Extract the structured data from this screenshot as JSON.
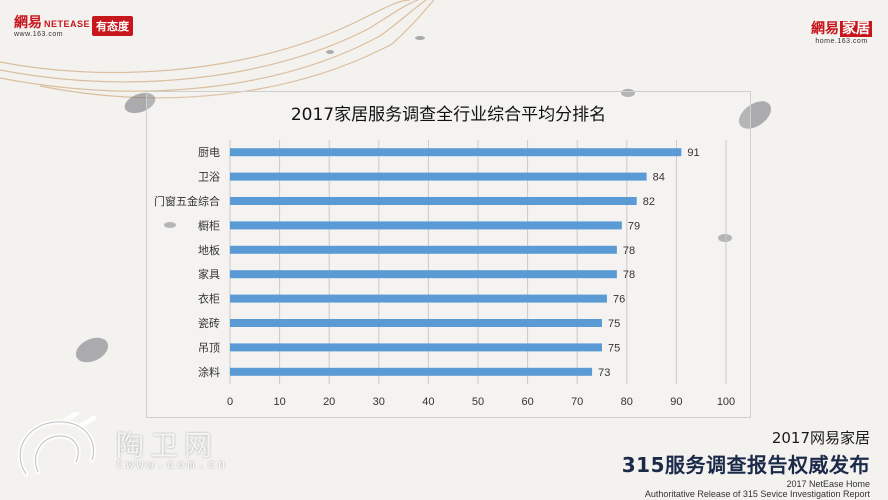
{
  "header": {
    "left_brand_cn": "網易",
    "left_brand_en": "NETEASE",
    "left_url": "www.163.com",
    "left_badge": "有态度",
    "right_brand_cn": "網易",
    "right_brand_boxed": "家居",
    "right_url": "home.163.com"
  },
  "chart_data": {
    "type": "bar",
    "orientation": "horizontal",
    "title": "2017家居服务调查全行业综合平均分排名",
    "categories": [
      "厨电",
      "卫浴",
      "门窗五金综合",
      "橱柜",
      "地板",
      "家具",
      "衣柜",
      "瓷砖",
      "吊顶",
      "涂料"
    ],
    "values": [
      91,
      84,
      82,
      79,
      78,
      78,
      76,
      75,
      75,
      73
    ],
    "xlim": [
      0,
      100
    ],
    "xticks": [
      0,
      10,
      20,
      30,
      40,
      50,
      60,
      70,
      80,
      90,
      100
    ],
    "grid": "vertical",
    "legend": "none",
    "bar_color": "#5b9bd5",
    "grid_color": "#c9c9c9",
    "text_color": "#333333"
  },
  "watermark": {
    "cn": "陶卫网",
    "url": "twww.com.cn"
  },
  "footer": {
    "line1": "2017网易家居",
    "line2": "315服务调查报告权威发布",
    "line3": "2017 NetEase Home",
    "line4": "Authoritative Release of 315 Sevice Investigation Report"
  }
}
